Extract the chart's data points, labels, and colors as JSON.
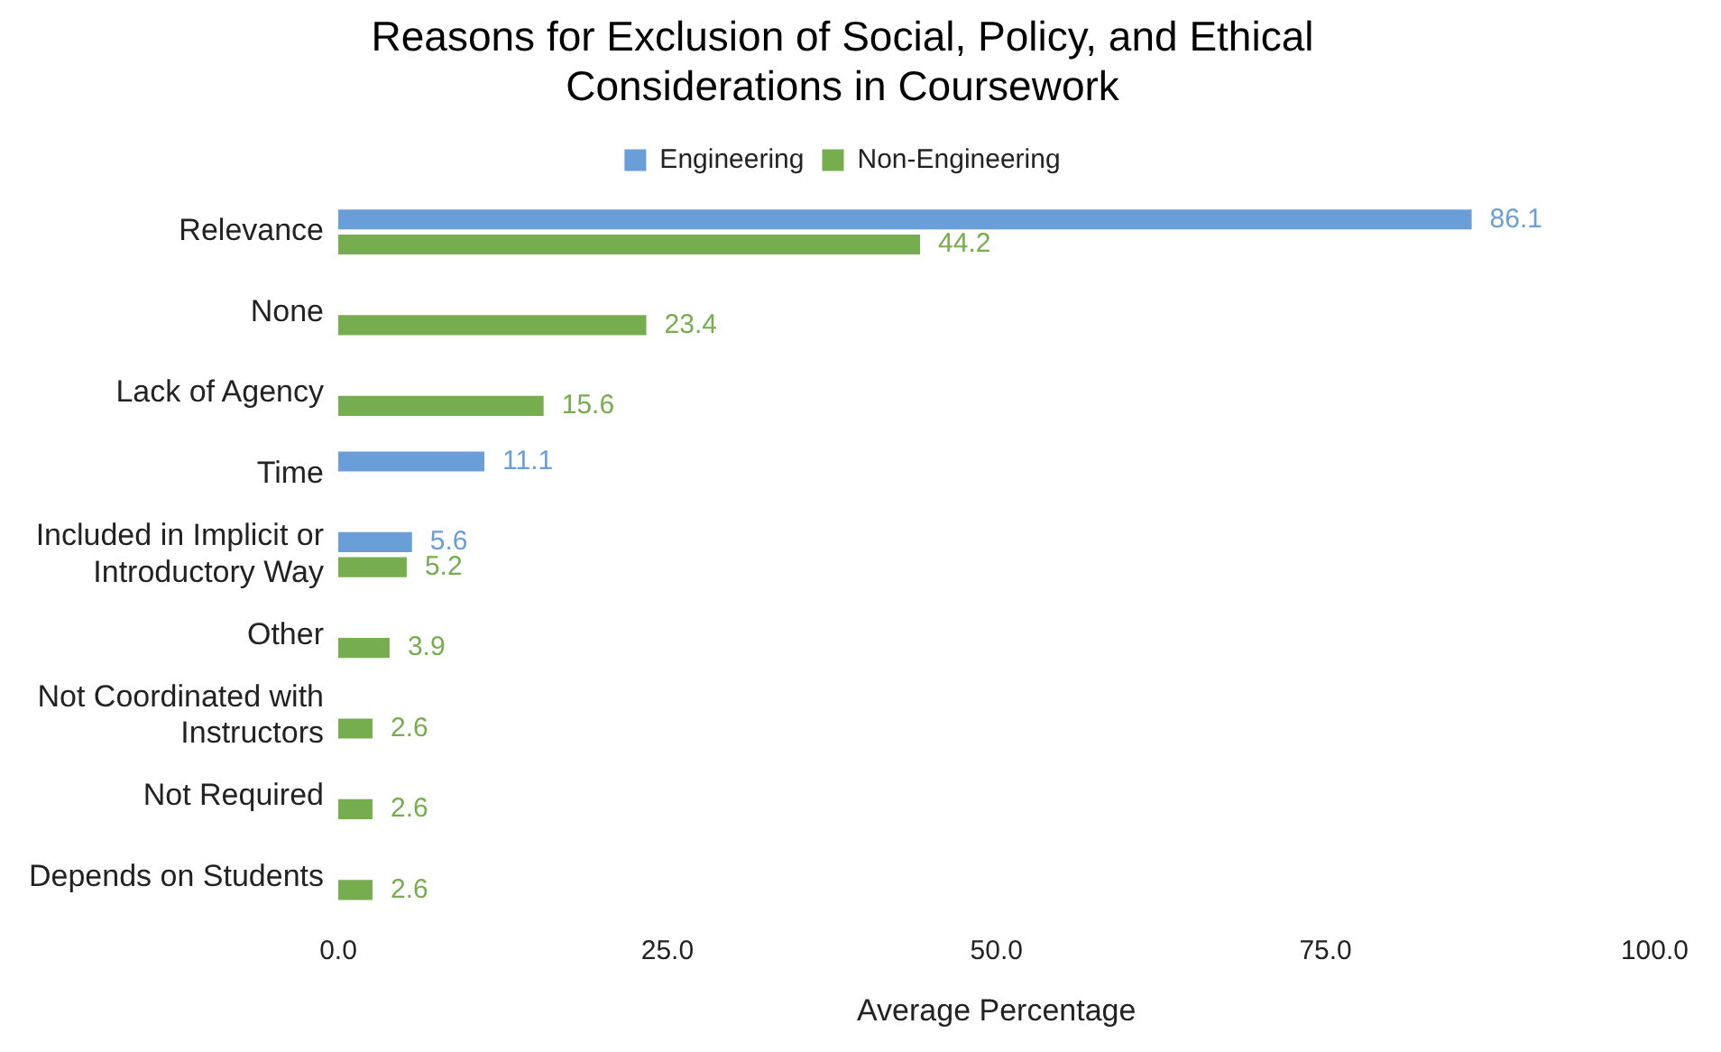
{
  "chart_data": {
    "type": "bar",
    "orientation": "horizontal",
    "title": "Reasons for Exclusion of Social, Policy, and Ethical Considerations in Coursework",
    "xlabel": "Average Percentage",
    "categories": [
      "Relevance",
      "None",
      "Lack of Agency",
      "Time",
      "Included in Implicit or Introductory Way",
      "Other",
      "Not Coordinated with Instructors",
      "Not Required",
      "Depends on Students"
    ],
    "series": [
      {
        "name": "Engineering",
        "color": "#6a9ed8",
        "values": [
          86.1,
          null,
          null,
          11.1,
          5.6,
          null,
          null,
          null,
          null
        ]
      },
      {
        "name": "Non-Engineering",
        "color": "#76ad4f",
        "values": [
          44.2,
          23.4,
          15.6,
          null,
          5.2,
          3.9,
          2.6,
          2.6,
          2.6
        ]
      }
    ],
    "xlim": [
      0,
      100
    ],
    "xticks": [
      {
        "value": 0,
        "label": "0.0"
      },
      {
        "value": 25,
        "label": "25.0"
      },
      {
        "value": 50,
        "label": "50.0"
      },
      {
        "value": 75,
        "label": "75.0"
      },
      {
        "value": 100,
        "label": "100.0"
      }
    ],
    "grid": false,
    "legend": "top",
    "data_labels": true
  }
}
